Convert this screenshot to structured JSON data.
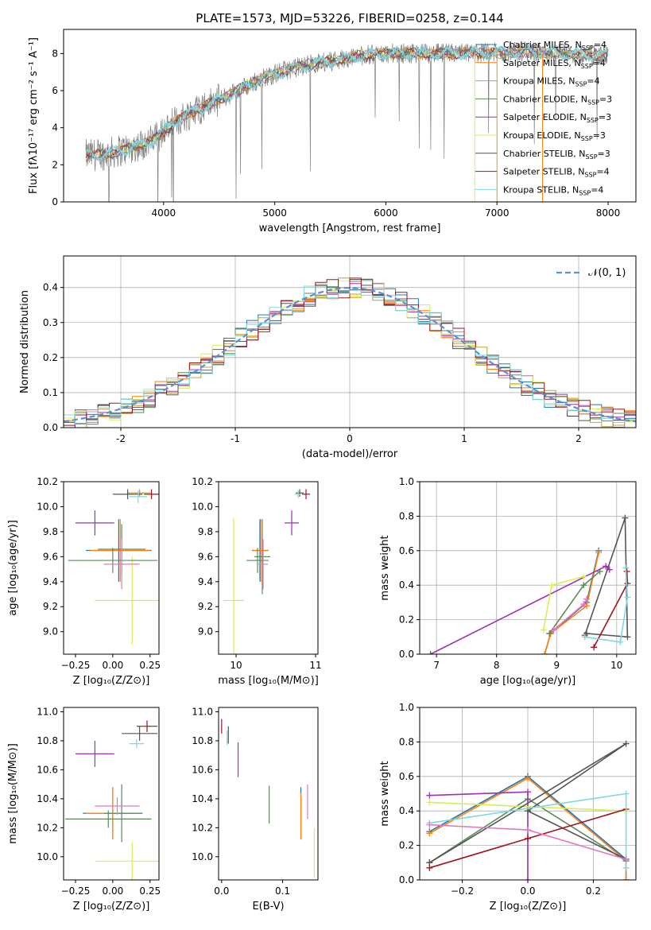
{
  "title": "PLATE=1573, MJD=53226, FIBERID=0258, z=0.144",
  "series": [
    {
      "name": "Chabrier MILES, N$_{SSP}$=4",
      "label": "Chabrier MILES, N",
      "n": "4",
      "color": "#1f77b4"
    },
    {
      "name": "Salpeter MILES, N$_{SSP}$=4",
      "label": "Salpeter MILES, N",
      "n": "4",
      "color": "#ff7f0e"
    },
    {
      "name": "Kroupa MILES, N$_{SSP}$=4",
      "label": "Kroupa MILES, N",
      "n": "4",
      "color": "#c2a23c"
    },
    {
      "name": "Chabrier ELODIE, N$_{SSP}$=3",
      "label": "Chabrier ELODIE, N",
      "n": "3",
      "color": "#5a8a5a"
    },
    {
      "name": "Salpeter ELODIE, N$_{SSP}$=3",
      "label": "Salpeter ELODIE, N",
      "n": "3",
      "color": "#9a32b4"
    },
    {
      "name": "Kroupa ELODIE, N$_{SSP}$=3",
      "label": "Kroupa ELODIE, N",
      "n": "3",
      "color": "#d9ec5a"
    },
    {
      "name": "Chabrier STELIB, N$_{SSP}$=3",
      "label": "Chabrier STELIB, N",
      "n": "3",
      "color": "#555555"
    },
    {
      "name": "Salpeter STELIB, N$_{SSP}$=4",
      "label": "Salpeter STELIB, N",
      "n": "4",
      "color": "#a0141e"
    },
    {
      "name": "Kroupa STELIB, N$_{SSP}$=4",
      "label": "Kroupa STELIB, N",
      "n": "4",
      "color": "#7fd8de"
    }
  ],
  "chart_data": [
    {
      "id": "spectrum",
      "type": "line",
      "xlabel": "wavelength [Angstrom, rest frame]",
      "ylabel": "Flux [fλ10⁻¹⁷ erg cm⁻² s⁻¹ A⁻¹]",
      "xlim": [
        3100,
        8250
      ],
      "ylim": [
        0,
        9.3
      ],
      "xticks": [
        4000,
        5000,
        6000,
        7000,
        8000
      ],
      "yticks": [
        0,
        2,
        4,
        6,
        8
      ],
      "data_color": "#808080",
      "model_color": "#7fd8de",
      "grid": false,
      "legend": "top-right",
      "continuum": {
        "x": [
          3300,
          3500,
          3700,
          3900,
          4100,
          4300,
          4500,
          4700,
          4900,
          5100,
          5300,
          5500,
          5800,
          6000,
          6300,
          6600,
          7000,
          7300,
          7600,
          7900,
          8000
        ],
        "y": [
          2.5,
          2.6,
          2.9,
          3.3,
          4.3,
          5.0,
          5.5,
          6.1,
          6.7,
          7.1,
          7.4,
          7.6,
          7.9,
          8.0,
          8.0,
          8.0,
          8.05,
          8.1,
          8.0,
          7.9,
          7.9
        ]
      }
    },
    {
      "id": "residuals",
      "type": "bar",
      "xlabel": "(data-model)/error",
      "ylabel": "Normed distribution",
      "xlim": [
        -2.5,
        2.5
      ],
      "ylim": [
        0,
        0.49
      ],
      "xticks": [
        -2,
        -1,
        0,
        1,
        2
      ],
      "yticks": [
        0.0,
        0.1,
        0.2,
        0.3,
        0.4
      ],
      "grid": true,
      "legend": "top-right",
      "gaussian_label": "𝒩(0, 1)",
      "gaussian_color": "#5b8fd6",
      "bin_width": 0.1
    },
    {
      "id": "Z_vs_age",
      "type": "scatter",
      "xlabel": "Z [log₁₀(Z/Z⊙)]",
      "ylabel": "age  [log₁₀(age/yr)]",
      "xlim": [
        -0.33,
        0.31
      ],
      "ylim": [
        8.82,
        10.2
      ],
      "xticks": [
        -0.25,
        0.0,
        0.25
      ],
      "xticklabels": [
        "−0.25",
        "0.00",
        "0.25"
      ],
      "yticks": [
        9.0,
        9.2,
        9.4,
        9.6,
        9.8,
        10.0,
        10.2
      ],
      "yticklabels": [
        "9.0",
        "9.2",
        "9.4",
        "9.6",
        "9.8",
        "10.0",
        "10.2"
      ],
      "points": [
        {
          "s": 0,
          "x": 0.04,
          "y": 9.65,
          "ex": 0.22,
          "ey": 0.25
        },
        {
          "s": 1,
          "x": 0.05,
          "y": 9.65,
          "ex": 0.2,
          "ey": 0.25
        },
        {
          "s": 2,
          "x": 0.18,
          "y": 10.11,
          "ex": 0.08,
          "ey": 0.03
        },
        {
          "s": 3,
          "x": 0.06,
          "y": 9.66,
          "ex": 0.16,
          "ey": 0.2
        },
        {
          "s": 4,
          "x": -0.12,
          "y": 9.87,
          "ex": 0.13,
          "ey": 0.1
        },
        {
          "s": 5,
          "x": 0.13,
          "y": 9.25,
          "ex": 0.25,
          "ey": 0.35
        },
        {
          "s": 6,
          "x": 0.1,
          "y": 10.1,
          "ex": 0.1,
          "ey": 0.04
        },
        {
          "s": 7,
          "x": 0.26,
          "y": 10.1,
          "ex": 0.05,
          "ey": 0.04
        },
        {
          "s": 8,
          "x": 0.17,
          "y": 10.08,
          "ex": 0.06,
          "ey": 0.05
        },
        {
          "s": 3,
          "x": 0.0,
          "y": 9.57,
          "ex": 0.3,
          "ey": 0.1
        },
        {
          "s": 1,
          "x": 0.06,
          "y": 9.54,
          "ex": 0.12,
          "ey": 0.2,
          "color": "#e377c2"
        }
      ]
    },
    {
      "id": "mass_vs_age",
      "type": "scatter",
      "xlabel": "mass [log₁₀(M/M⊙)]",
      "ylabel": "",
      "xlim": [
        9.78,
        11.03
      ],
      "ylim": [
        8.82,
        10.2
      ],
      "xticks": [
        10,
        11
      ],
      "xticklabels": [
        "10",
        "11"
      ],
      "yticks": [
        9.0,
        9.2,
        9.4,
        9.6,
        9.8,
        10.0,
        10.2
      ],
      "yticklabels": [
        "9.0",
        "9.2",
        "9.4",
        "9.6",
        "9.8",
        "10.0",
        "10.2"
      ],
      "points": [
        {
          "s": 0,
          "x": 10.3,
          "y": 9.65,
          "ex": 0.1,
          "ey": 0.25
        },
        {
          "s": 1,
          "x": 10.31,
          "y": 9.65,
          "ex": 0.1,
          "ey": 0.25
        },
        {
          "s": 3,
          "x": 10.33,
          "y": 9.6,
          "ex": 0.1,
          "ey": 0.3
        },
        {
          "s": 4,
          "x": 10.7,
          "y": 9.87,
          "ex": 0.09,
          "ey": 0.1
        },
        {
          "s": 5,
          "x": 9.97,
          "y": 9.25,
          "ex": 0.13,
          "ey": 0.66
        },
        {
          "s": 6,
          "x": 10.8,
          "y": 10.11,
          "ex": 0.05,
          "ey": 0.03
        },
        {
          "s": 7,
          "x": 10.88,
          "y": 10.1,
          "ex": 0.05,
          "ey": 0.04
        },
        {
          "s": 8,
          "x": 10.78,
          "y": 10.1,
          "ex": 0.04,
          "ey": 0.03
        },
        {
          "s": 3,
          "x": 10.27,
          "y": 9.57,
          "ex": 0.14,
          "ey": 0.1
        },
        {
          "s": 1,
          "x": 10.34,
          "y": 9.54,
          "ex": 0.06,
          "ey": 0.2,
          "color": "#e377c2"
        }
      ]
    },
    {
      "id": "age_vs_weight",
      "type": "line",
      "xlabel": "age  [log₁₀(age/yr)]",
      "ylabel": "mass weight",
      "xlim": [
        6.72,
        10.32
      ],
      "ylim": [
        0,
        1.0
      ],
      "xticks": [
        7,
        8,
        9,
        10
      ],
      "xticklabels": [
        "7",
        "8",
        "9",
        "10"
      ],
      "yticks": [
        0.0,
        0.2,
        0.4,
        0.6,
        0.8,
        1.0
      ],
      "yticklabels": [
        "0.0",
        "0.2",
        "0.4",
        "0.6",
        "0.8",
        "1.0"
      ],
      "grid": true,
      "lines": [
        {
          "s": 0,
          "x": [
            8.8,
            8.9,
            9.5,
            9.7
          ],
          "y": [
            0.0,
            0.12,
            0.3,
            0.6
          ]
        },
        {
          "s": 1,
          "x": [
            8.8,
            8.9,
            9.5,
            9.7
          ],
          "y": [
            0.0,
            0.12,
            0.28,
            0.59
          ]
        },
        {
          "s": 3,
          "x": [
            8.88,
            9.45,
            9.72
          ],
          "y": [
            0.12,
            0.4,
            0.48
          ]
        },
        {
          "s": 4,
          "x": [
            6.9,
            9.82,
            9.88
          ],
          "y": [
            0.0,
            0.51,
            0.49
          ]
        },
        {
          "s": 5,
          "x": [
            8.78,
            8.92,
            9.45
          ],
          "y": [
            0.14,
            0.4,
            0.45
          ]
        },
        {
          "s": 6,
          "x": [
            9.47,
            10.14,
            10.18,
            9.5
          ],
          "y": [
            0.11,
            0.79,
            0.1,
            0.12
          ]
        },
        {
          "s": 7,
          "x": [
            9.62,
            10.18,
            10.17
          ],
          "y": [
            0.04,
            0.41,
            0.48
          ]
        },
        {
          "s": 8,
          "x": [
            9.47,
            10.06,
            10.18,
            10.15
          ],
          "y": [
            0.1,
            0.07,
            0.33,
            0.5
          ]
        },
        {
          "s": 1,
          "x": [
            8.95,
            9.45,
            9.5
          ],
          "y": [
            0.14,
            0.29,
            0.32
          ],
          "color": "#e377c2"
        }
      ]
    },
    {
      "id": "Z_vs_mass",
      "type": "scatter",
      "xlabel": "Z [log₁₀(Z/Z⊙)]",
      "ylabel": "mass [log₁₀(M/M⊙)]",
      "xlim": [
        -0.33,
        0.31
      ],
      "ylim": [
        9.84,
        11.03
      ],
      "xticks": [
        -0.25,
        0.0,
        0.25
      ],
      "xticklabels": [
        "−0.25",
        "0.00",
        "0.25"
      ],
      "yticks": [
        10.0,
        10.2,
        10.4,
        10.6,
        10.8,
        11.0
      ],
      "yticklabels": [
        "10.0",
        "10.2",
        "10.4",
        "10.6",
        "10.8",
        "11.0"
      ],
      "points": [
        {
          "s": 0,
          "x": 0.0,
          "y": 10.3,
          "ex": 0.2,
          "ey": 0.18
        },
        {
          "s": 1,
          "x": 0.0,
          "y": 10.3,
          "ex": 0.18,
          "ey": 0.18
        },
        {
          "s": 3,
          "x": 0.06,
          "y": 10.3,
          "ex": 0.12,
          "ey": 0.2
        },
        {
          "s": 4,
          "x": -0.12,
          "y": 10.71,
          "ex": 0.13,
          "ey": 0.09
        },
        {
          "s": 5,
          "x": 0.13,
          "y": 9.97,
          "ex": 0.25,
          "ey": 0.13
        },
        {
          "s": 6,
          "x": 0.18,
          "y": 10.85,
          "ex": 0.12,
          "ey": 0.05
        },
        {
          "s": 7,
          "x": 0.23,
          "y": 10.9,
          "ex": 0.07,
          "ey": 0.04
        },
        {
          "s": 8,
          "x": 0.16,
          "y": 10.78,
          "ex": 0.05,
          "ey": 0.03
        },
        {
          "s": 3,
          "x": -0.03,
          "y": 10.26,
          "ex": 0.29,
          "ey": 0.06
        },
        {
          "s": 1,
          "x": 0.03,
          "y": 10.35,
          "ex": 0.15,
          "ey": 0.06,
          "color": "#e377c2"
        }
      ]
    },
    {
      "id": "EBV_vs_mass",
      "type": "scatter",
      "xlabel": "E(B-V)",
      "ylabel": "",
      "xlim": [
        -0.005,
        0.158
      ],
      "ylim": [
        9.84,
        11.03
      ],
      "xticks": [
        0.0,
        0.1
      ],
      "xticklabels": [
        "0.0",
        "0.1"
      ],
      "yticks": [
        10.0,
        10.2,
        10.4,
        10.6,
        10.8,
        11.0
      ],
      "yticklabels": [
        "10.0",
        "10.2",
        "10.4",
        "10.6",
        "10.8",
        "11.0"
      ],
      "points": [
        {
          "s": 0,
          "x": 0.13,
          "y": 10.3,
          "ex": 0,
          "ey": 0.18
        },
        {
          "s": 1,
          "x": 0.13,
          "y": 10.28,
          "ex": 0,
          "ey": 0.16
        },
        {
          "s": 3,
          "x": 0.078,
          "y": 10.36,
          "ex": 0,
          "ey": 0.13
        },
        {
          "s": 4,
          "x": 0.027,
          "y": 10.67,
          "ex": 0,
          "ey": 0.12
        },
        {
          "s": 5,
          "x": 0.152,
          "y": 10.03,
          "ex": 0,
          "ey": 0.17
        },
        {
          "s": 6,
          "x": 0.011,
          "y": 10.84,
          "ex": 0,
          "ey": 0.06
        },
        {
          "s": 7,
          "x": 0.0,
          "y": 10.9,
          "ex": 0,
          "ey": 0.05
        },
        {
          "s": 8,
          "x": 0.009,
          "y": 10.82,
          "ex": 0,
          "ey": 0.05
        },
        {
          "s": 1,
          "x": 0.141,
          "y": 10.38,
          "ex": 0,
          "ey": 0.12,
          "color": "#e377c2"
        }
      ]
    },
    {
      "id": "Z_vs_weight",
      "type": "line",
      "xlabel": "Z [log₁₀(Z/Z⊙)]",
      "ylabel": "mass weight",
      "xlim": [
        -0.33,
        0.33
      ],
      "ylim": [
        0,
        1.0
      ],
      "xticks": [
        -0.2,
        0.0,
        0.2
      ],
      "xticklabels": [
        "−0.2",
        "0.0",
        "0.2"
      ],
      "yticks": [
        0.0,
        0.2,
        0.4,
        0.6,
        0.8,
        1.0
      ],
      "yticklabels": [
        "0.0",
        "0.2",
        "0.4",
        "0.6",
        "0.8",
        "1.0"
      ],
      "grid": true,
      "lines": [
        {
          "s": 0,
          "x": [
            -0.3,
            0.0,
            0.3,
            0.3
          ],
          "y": [
            0.28,
            0.6,
            0.12,
            0.0
          ]
        },
        {
          "s": 1,
          "x": [
            -0.3,
            0.0,
            0.3,
            0.3
          ],
          "y": [
            0.27,
            0.59,
            0.11,
            0.0
          ]
        },
        {
          "s": 3,
          "x": [
            -0.3,
            0.0,
            0.3
          ],
          "y": [
            0.1,
            0.47,
            0.11
          ]
        },
        {
          "s": 4,
          "x": [
            -0.3,
            0.0,
            0.0
          ],
          "y": [
            0.49,
            0.51,
            0.0
          ]
        },
        {
          "s": 5,
          "x": [
            -0.3,
            0.3
          ],
          "y": [
            0.45,
            0.4
          ]
        },
        {
          "s": 6,
          "x": [
            -0.3,
            0.3,
            0.0,
            0.3
          ],
          "y": [
            0.1,
            0.79,
            0.4,
            0.12
          ]
        },
        {
          "s": 7,
          "x": [
            -0.3,
            0.0,
            0.3
          ],
          "y": [
            0.07,
            0.24,
            0.41
          ]
        },
        {
          "s": 8,
          "x": [
            -0.3,
            0.3,
            0.3
          ],
          "y": [
            0.33,
            0.5,
            0.07
          ]
        },
        {
          "s": 1,
          "x": [
            -0.3,
            0.0,
            0.3
          ],
          "y": [
            0.32,
            0.29,
            0.12
          ],
          "color": "#e377c2"
        }
      ]
    }
  ]
}
